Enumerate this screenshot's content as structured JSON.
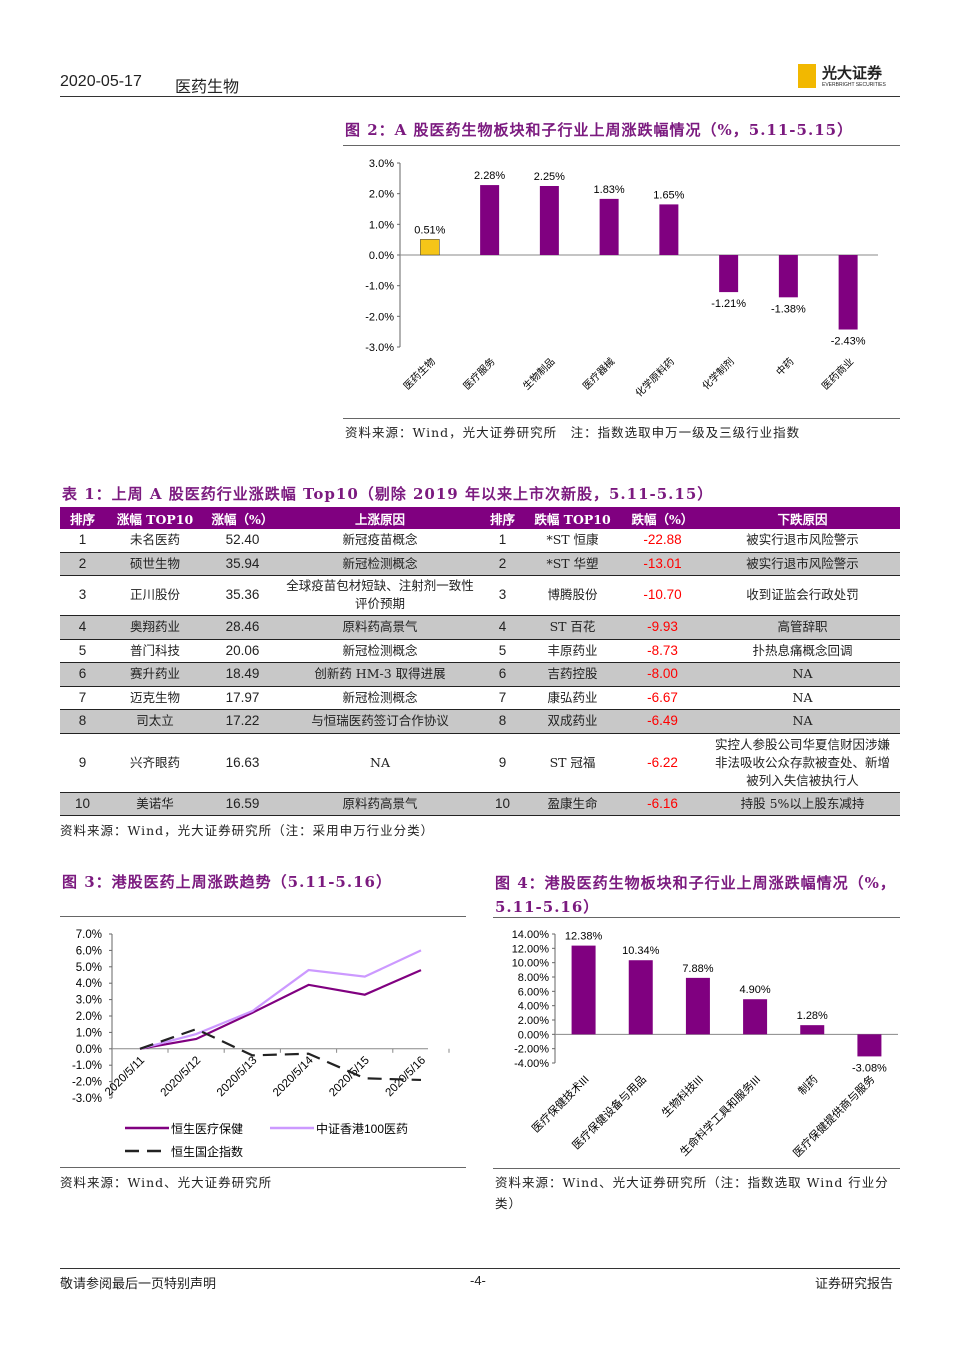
{
  "header": {
    "date": "2020-05-17",
    "section": "医药生物",
    "logo_cn": "光大证券",
    "logo_en": "EVERBRIGHT SECURITIES"
  },
  "fig2": {
    "title": "图 2：A 股医药生物板块和子行业上周涨跌幅情况（%，5.11-5.15）",
    "source": "资料来源：Wind，光大证券研究所　注：指数选取申万一级及三级行业指数"
  },
  "fig3": {
    "title": "图 3：港股医药上周涨跌趋势（5.11-5.16）",
    "source": "资料来源：Wind、光大证券研究所"
  },
  "fig4": {
    "title": "图 4：港股医药生物板块和子行业上周涨跌幅情况（%，5.11-5.16）",
    "source": "资料来源：Wind、光大证券研究所（注：指数选取 Wind 行业分类）"
  },
  "table1": {
    "title": "表 1：上周 A 股医药行业涨跌幅 Top10（剔除 2019 年以来上市次新股，5.11-5.15）",
    "headers": [
      "排序",
      "涨幅 TOP10",
      "涨幅（%）",
      "上涨原因",
      "排序",
      "跌幅 TOP10",
      "跌幅（%）",
      "下跌原因"
    ],
    "rows": [
      [
        "1",
        "未名医药",
        "52.40",
        "新冠疫苗概念",
        "1",
        "*ST 恒康",
        "-22.88",
        "被实行退市风险警示"
      ],
      [
        "2",
        "硕世生物",
        "35.94",
        "新冠检测概念",
        "2",
        "*ST 华塑",
        "-13.01",
        "被实行退市风险警示"
      ],
      [
        "3",
        "正川股份",
        "35.36",
        "全球疫苗包材短缺、注射剂一致性评价预期",
        "3",
        "博腾股份",
        "-10.70",
        "收到证监会行政处罚"
      ],
      [
        "4",
        "奥翔药业",
        "28.46",
        "原料药高景气",
        "4",
        "ST 百花",
        "-9.93",
        "高管辞职"
      ],
      [
        "5",
        "普门科技",
        "20.06",
        "新冠检测概念",
        "5",
        "丰原药业",
        "-8.73",
        "扑热息痛概念回调"
      ],
      [
        "6",
        "赛升药业",
        "18.49",
        "创新药 HM-3 取得进展",
        "6",
        "吉药控股",
        "-8.00",
        "NA"
      ],
      [
        "7",
        "迈克生物",
        "17.97",
        "新冠检测概念",
        "7",
        "康弘药业",
        "-6.67",
        "NA"
      ],
      [
        "8",
        "司太立",
        "17.22",
        "与恒瑞医药签订合作协议",
        "8",
        "双成药业",
        "-6.49",
        "NA"
      ],
      [
        "9",
        "兴齐眼药",
        "16.63",
        "NA",
        "9",
        "ST 冠福",
        "-6.22",
        "实控人参股公司华夏信财因涉嫌非法吸收公众存款被查处、新增被列入失信被执行人"
      ],
      [
        "10",
        "美诺华",
        "16.59",
        "原料药高景气",
        "10",
        "盈康生命",
        "-6.16",
        "持股 5%以上股东减持"
      ]
    ],
    "source": "资料来源：Wind，光大证券研究所（注：采用申万行业分类）"
  },
  "footer": {
    "left": "敬请参阅最后一页特别声明",
    "page": "-4-",
    "right": "证券研究报告"
  },
  "chart_data": [
    {
      "type": "bar",
      "title": "图 2：A 股医药生物板块和子行业上周涨跌幅情况（%，5.11-5.15）",
      "categories": [
        "医药生物",
        "医疗服务",
        "生物制品",
        "医疗器械",
        "化学原料药",
        "化学制剂",
        "中药",
        "医药商业"
      ],
      "values": [
        0.51,
        2.28,
        2.25,
        1.83,
        1.65,
        -1.21,
        -1.38,
        -2.43
      ],
      "labels": [
        "0.51%",
        "2.28%",
        "2.25%",
        "1.83%",
        "1.65%",
        "-1.21%",
        "-1.38%",
        "-2.43%"
      ],
      "yticks": [
        "3.0%",
        "2.0%",
        "1.0%",
        "0.0%",
        "-1.0%",
        "-2.0%",
        "-3.0%"
      ],
      "ylim": [
        -3,
        3
      ],
      "colors": [
        "#f5c518",
        "#800080"
      ]
    },
    {
      "type": "line",
      "title": "图 3：港股医药上周涨跌趋势（5.11-5.16）",
      "x": [
        "2020/5/11",
        "2020/5/12",
        "2020/5/13",
        "2020/5/14",
        "2020/5/15",
        "2020/5/16"
      ],
      "yticks": [
        "7.0%",
        "6.0%",
        "5.0%",
        "4.0%",
        "3.0%",
        "2.0%",
        "1.0%",
        "0.0%",
        "-1.0%",
        "-2.0%",
        "-3.0%"
      ],
      "ylim": [
        -3,
        7
      ],
      "legend": "bottom",
      "series": [
        {
          "name": "恒生医疗保健",
          "values": [
            0,
            0.6,
            2.2,
            3.9,
            3.3,
            4.8
          ],
          "color": "#800080",
          "dash": false
        },
        {
          "name": "中证香港100医药",
          "values": [
            0,
            0.9,
            2.3,
            4.8,
            4.4,
            6.0
          ],
          "color": "#cc99ff",
          "dash": false
        },
        {
          "name": "恒生国企指数",
          "values": [
            0,
            1.2,
            -0.4,
            -0.3,
            -1.8,
            -1.9
          ],
          "color": "#222222",
          "dash": true
        }
      ]
    },
    {
      "type": "bar",
      "title": "图 4：港股医药生物板块和子行业上周涨跌幅情况（%，5.11-5.16）",
      "categories": [
        "医疗保健技术III",
        "医疗保健设备与用品",
        "生物科技III",
        "生命科学工具和服务III",
        "制药",
        "医疗保健提供商与服务"
      ],
      "values": [
        12.38,
        10.34,
        7.88,
        4.9,
        1.28,
        -3.08
      ],
      "labels": [
        "12.38%",
        "10.34%",
        "7.88%",
        "4.90%",
        "1.28%",
        "-3.08%"
      ],
      "yticks": [
        "14.00%",
        "12.00%",
        "10.00%",
        "8.00%",
        "6.00%",
        "4.00%",
        "2.00%",
        "0.00%",
        "-2.00%",
        "-4.00%"
      ],
      "ylim": [
        -4,
        14
      ],
      "colors": [
        "#800080"
      ]
    }
  ]
}
